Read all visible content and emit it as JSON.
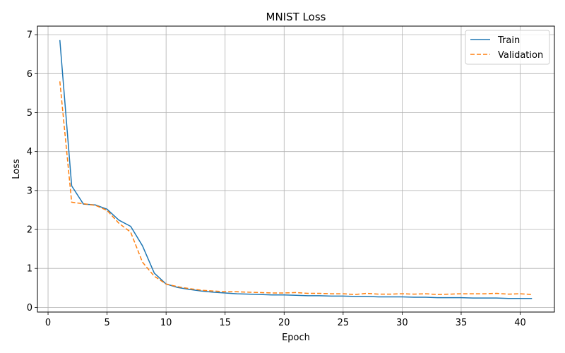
{
  "chart_data": {
    "type": "line",
    "title": "MNIST Loss",
    "xlabel": "Epoch",
    "ylabel": "Loss",
    "xlim": [
      -0.9,
      42.9
    ],
    "ylim": [
      -0.12,
      7.22
    ],
    "xticks": [
      0,
      5,
      10,
      15,
      20,
      25,
      30,
      35,
      40
    ],
    "yticks": [
      0,
      1,
      2,
      3,
      4,
      5,
      6,
      7
    ],
    "grid": true,
    "legend_position": "top-right",
    "x": [
      1,
      2,
      3,
      4,
      5,
      6,
      7,
      8,
      9,
      10,
      11,
      12,
      13,
      14,
      15,
      16,
      17,
      18,
      19,
      20,
      21,
      22,
      23,
      24,
      25,
      26,
      27,
      28,
      29,
      30,
      31,
      32,
      33,
      34,
      35,
      36,
      37,
      38,
      39,
      40,
      41
    ],
    "series": [
      {
        "name": "Train",
        "color": "#1f77b4",
        "style": "solid",
        "values": [
          6.86,
          3.12,
          2.65,
          2.63,
          2.52,
          2.24,
          2.08,
          1.58,
          0.88,
          0.6,
          0.51,
          0.46,
          0.42,
          0.39,
          0.37,
          0.35,
          0.34,
          0.33,
          0.32,
          0.32,
          0.31,
          0.3,
          0.3,
          0.29,
          0.29,
          0.28,
          0.28,
          0.27,
          0.27,
          0.27,
          0.26,
          0.26,
          0.25,
          0.25,
          0.25,
          0.24,
          0.24,
          0.24,
          0.23,
          0.23,
          0.23
        ]
      },
      {
        "name": "Validation",
        "color": "#ff7f0e",
        "style": "dashed",
        "values": [
          5.8,
          2.7,
          2.66,
          2.62,
          2.49,
          2.16,
          1.93,
          1.16,
          0.8,
          0.6,
          0.53,
          0.48,
          0.44,
          0.42,
          0.4,
          0.4,
          0.39,
          0.38,
          0.37,
          0.37,
          0.38,
          0.36,
          0.36,
          0.35,
          0.35,
          0.33,
          0.36,
          0.34,
          0.34,
          0.35,
          0.34,
          0.35,
          0.33,
          0.34,
          0.35,
          0.35,
          0.35,
          0.36,
          0.34,
          0.35,
          0.33
        ]
      }
    ]
  }
}
